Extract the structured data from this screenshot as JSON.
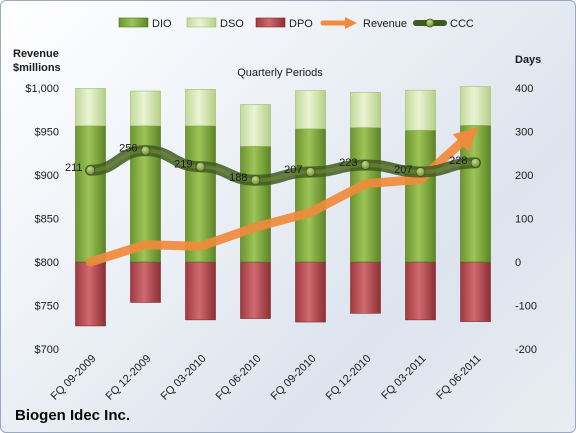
{
  "company": "Biogen Idec Inc.",
  "chart_data": {
    "type": "bar",
    "title": "Quarterly Periods",
    "categories": [
      "FQ 09-2009",
      "FQ 12-2009",
      "FQ 03-2010",
      "FQ 06-2010",
      "FQ 09-2010",
      "FQ 12-2010",
      "FQ 03-2011",
      "FQ 06-2011"
    ],
    "left_axis": {
      "label_line1": "Revenue",
      "label_line2": "$millions",
      "ylim": [
        700,
        1000
      ],
      "ticks": [
        700,
        750,
        800,
        850,
        900,
        950,
        1000
      ],
      "tick_labels": [
        "$700",
        "$750",
        "$800",
        "$850",
        "$900",
        "$950",
        "$1,000"
      ]
    },
    "right_axis": {
      "label": "Days",
      "ylim": [
        -200,
        400
      ],
      "ticks": [
        -200,
        -100,
        0,
        100,
        200,
        300,
        400
      ],
      "tick_labels": [
        "-200",
        "-100",
        "0",
        "100",
        "200",
        "300",
        "400"
      ]
    },
    "legend_position": "top",
    "grid": false,
    "series": [
      {
        "name": "DIO",
        "kind": "stacked-bar",
        "axis": "right",
        "color": "#7fa63c",
        "values": [
          313,
          313,
          313,
          266,
          306,
          309,
          303,
          314
        ]
      },
      {
        "name": "DSO",
        "kind": "stacked-bar",
        "axis": "right",
        "color": "#d3e6ab",
        "values": [
          86,
          80,
          84,
          96,
          88,
          81,
          92,
          89
        ]
      },
      {
        "name": "DPO",
        "kind": "bar",
        "axis": "right",
        "color": "#b8474d",
        "values": [
          -147,
          -93,
          -133,
          -130,
          -138,
          -118,
          -133,
          -137
        ]
      },
      {
        "name": "Revenue",
        "kind": "arrow-line",
        "axis": "left",
        "color": "#f08a3c",
        "values": [
          800,
          820,
          818,
          840,
          857,
          890,
          895,
          952
        ]
      },
      {
        "name": "CCC",
        "kind": "line",
        "axis": "right",
        "color": "#4e6b2a",
        "values": [
          211,
          256,
          219,
          188,
          207,
          223,
          207,
          228
        ]
      }
    ],
    "ccc_labels": [
      "211",
      "256",
      "219",
      "188",
      "207",
      "223",
      "207",
      "228"
    ]
  }
}
